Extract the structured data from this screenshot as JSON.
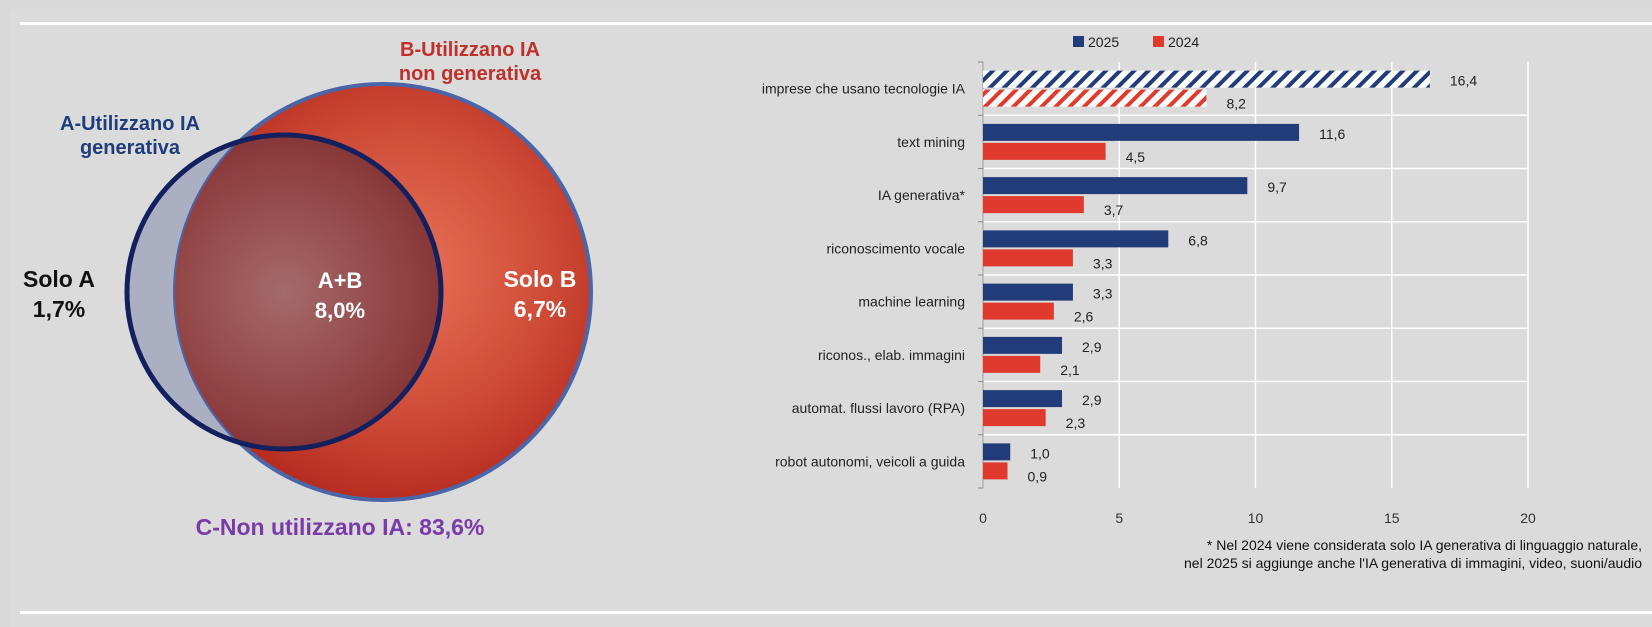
{
  "venn": {
    "b_title": "B-Utilizzano IA non generativa",
    "a_title": "A-Utilizzano IA generativa",
    "solo_a": "Solo A 1,7%",
    "ab": "A+B 8,0%",
    "solo_b": "Solo B 6,7%",
    "c_label": "C-Non utilizzano IA: 83,6%",
    "colors": {
      "a_outline": "#14205e",
      "b_fill": "#c0392b",
      "a_only_fill": "#aab0c2"
    }
  },
  "chart_data": {
    "type": "bar",
    "orientation": "horizontal",
    "categories": [
      "imprese che usano tecnologie IA",
      "text mining",
      "IA generativa*",
      "riconoscimento vocale",
      "machine learning",
      "riconos., elab. immagini",
      "automat. flussi lavoro (RPA)",
      "robot autonomi, veicoli a guida"
    ],
    "series": [
      {
        "name": "2025",
        "color": "#223c7a",
        "values": [
          16.4,
          11.6,
          9.7,
          6.8,
          3.3,
          2.9,
          2.9,
          1.0
        ],
        "labels": [
          "16,4",
          "11,6",
          "9,7",
          "6,8",
          "3,3",
          "2,9",
          "2,9",
          "1,0"
        ]
      },
      {
        "name": "2024",
        "color": "#e03a2e",
        "values": [
          8.2,
          4.5,
          3.7,
          3.3,
          2.6,
          2.1,
          2.3,
          0.9
        ],
        "labels": [
          "8,2",
          "4,5",
          "3,7",
          "3,3",
          "2,6",
          "2,1",
          "2,3",
          "0,9"
        ]
      }
    ],
    "hatched_categories": [
      "imprese che usano tecnologie IA"
    ],
    "xlim": [
      0,
      20
    ],
    "xticks": [
      0,
      5,
      10,
      15,
      20
    ],
    "grid": "vertical",
    "legend": "top",
    "footnote": [
      "* Nel 2024 viene considerata solo IA generativa di linguaggio naturale,",
      "nel 2025 si aggiunge anche l'IA generativa di immagini, video, suoni/audio"
    ]
  }
}
